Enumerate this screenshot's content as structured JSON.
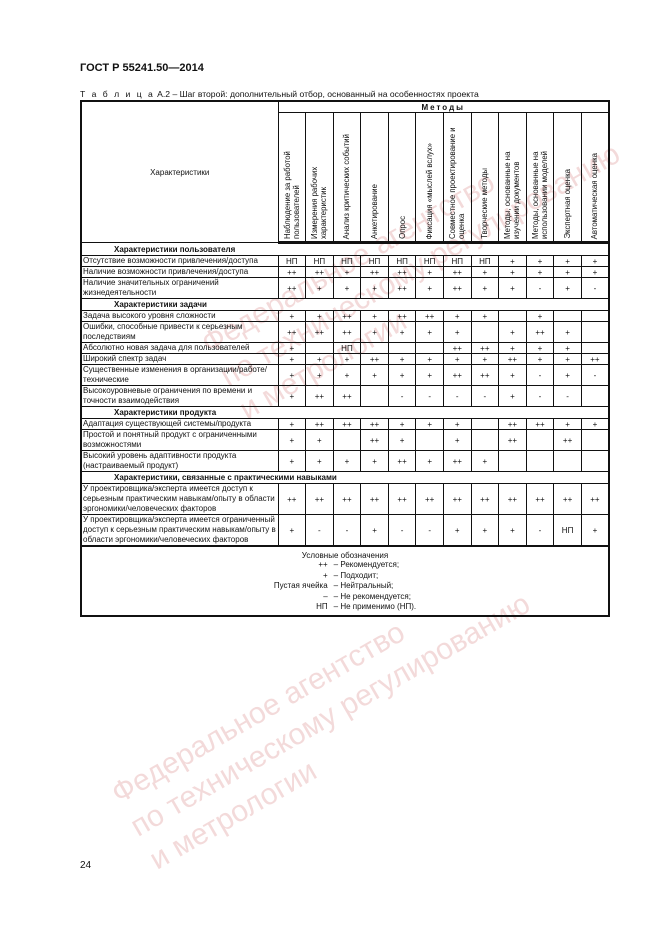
{
  "doc_title": "ГОСТ Р 55241.50—2014",
  "caption": {
    "prefix": "Т а б л и ц а",
    "text": " А.2 – Шаг второй: дополнительный отбор, основанный на особенностях проекта"
  },
  "table": {
    "characteristics_header": "Характеристики",
    "methods_header": "Методы",
    "methods": [
      "Наблюдение за работой пользователей",
      "Измерения рабочих характеристик",
      "Анализ критических событий",
      "Анкетирование",
      "Опрос",
      "Фиксация «мыслей вслух»",
      "Совместное проектирование и оценка",
      "Творческие методы",
      "Методы, основанные на изучении документов",
      "Методы, основанные на использовании моделей",
      "Экспертная оценка",
      "Автоматическая оценка"
    ],
    "sections": [
      {
        "title": "Характеристики пользователя",
        "rows": [
          {
            "label": "Отсутствие возможности привлечения/доступа",
            "values": [
              "НП",
              "НП",
              "НП",
              "НП",
              "НП",
              "НП",
              "НП",
              "НП",
              "+",
              "+",
              "+",
              "+"
            ]
          },
          {
            "label": "Наличие возможности привлечения/доступа",
            "values": [
              "++",
              "++",
              "+",
              "++",
              "++",
              "+",
              "++",
              "+",
              "+",
              "+",
              "+",
              "+"
            ]
          },
          {
            "label": "Наличие значительных ограничений жизнедеятельности",
            "values": [
              "++",
              "+",
              "+",
              "+",
              "++",
              "+",
              "++",
              "+",
              "+",
              "-",
              "+",
              "-"
            ]
          }
        ]
      },
      {
        "title": "Характеристики задачи",
        "rows": [
          {
            "label": "Задача высокого уровня сложности",
            "values": [
              "+",
              "+",
              "++",
              "+",
              "++",
              "++",
              "+",
              "+",
              "",
              "+",
              "",
              ""
            ]
          },
          {
            "label": "Ошибки, способные привести к серьезным последствиям",
            "values": [
              "++",
              "++",
              "++",
              "+",
              "+",
              "+",
              "+",
              "",
              "+",
              "++",
              "+",
              ""
            ]
          },
          {
            "label": "Абсолютно новая задача для пользователей",
            "values": [
              "+",
              "",
              "НП",
              "",
              "",
              "",
              "++",
              "++",
              "+",
              "+",
              "+",
              ""
            ]
          },
          {
            "label": "Широкий спектр задач",
            "values": [
              "+",
              "+",
              "+",
              "++",
              "+",
              "+",
              "+",
              "+",
              "++",
              "+",
              "+",
              "++"
            ]
          },
          {
            "label": "Существенные изменения в организации/работе/технические",
            "values": [
              "+",
              "+",
              "+",
              "+",
              "+",
              "+",
              "++",
              "++",
              "+",
              "-",
              "+",
              "-"
            ]
          },
          {
            "label": "Высокоуровневые ограничения по времени и точности взаимодействия",
            "values": [
              "+",
              "++",
              "++",
              "",
              "-",
              "-",
              "-",
              "-",
              "+",
              "-",
              "-",
              ""
            ]
          }
        ]
      },
      {
        "title": "Характеристики продукта",
        "rows": [
          {
            "label": "Адаптация существующей системы/продукта",
            "values": [
              "+",
              "++",
              "++",
              "++",
              "+",
              "+",
              "+",
              "",
              "++",
              "++",
              "+",
              "+"
            ]
          },
          {
            "label": "Простой и понятный продукт с ограниченными возможностями",
            "values": [
              "+",
              "+",
              "",
              "++",
              "+",
              "",
              "+",
              "",
              "++",
              "",
              "++",
              ""
            ]
          },
          {
            "label": "Высокий уровень адаптивности продукта (настраиваемый продукт)",
            "values": [
              "+",
              "+",
              "+",
              "+",
              "++",
              "+",
              "++",
              "+",
              "",
              "",
              "",
              ""
            ]
          }
        ]
      },
      {
        "title": "Характеристики, связанные с практическими навыками",
        "rows": [
          {
            "label": "У проектировщика/эксперта имеется доступ к серьезным практическим навыкам/опыту в области эргономики/человеческих факторов",
            "values": [
              "++",
              "++",
              "++",
              "++",
              "++",
              "++",
              "++",
              "++",
              "++",
              "++",
              "++",
              "++"
            ]
          },
          {
            "label": "У проектировщика/эксперта имеется ограниченный доступ к серьезным практическим навыкам/опыту в области эргономики/человеческих факторов",
            "values": [
              "+",
              "-",
              "-",
              "+",
              "-",
              "-",
              "+",
              "+",
              "+",
              "-",
              "НП",
              "+"
            ]
          }
        ]
      }
    ],
    "legend": {
      "title": "Условные обозначения",
      "items": [
        {
          "symbol": "++",
          "meaning": "– Рекомендуется;"
        },
        {
          "symbol": "+",
          "meaning": "– Подходит;"
        },
        {
          "symbol": "Пустая ячейка",
          "meaning": "– Нейтральный;"
        },
        {
          "symbol": "–",
          "meaning": "– Не рекомендуется;"
        },
        {
          "symbol": "НП",
          "meaning": "– Не применимо (НП)."
        }
      ]
    }
  },
  "page_number": "24",
  "watermark": [
    "Федеральное агентство",
    "по техническому регулированию",
    "и метрологии"
  ]
}
